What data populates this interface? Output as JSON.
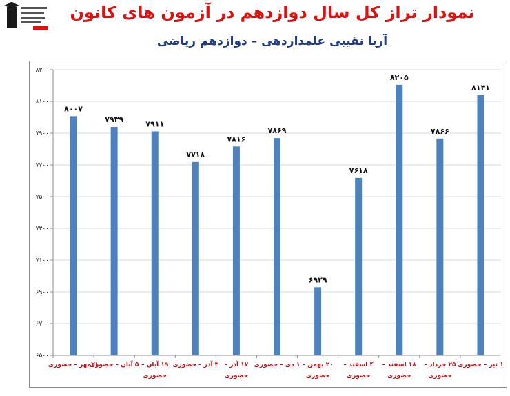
{
  "header": {
    "title": "نمودار تراز کل سال دوازدهم در آزمون های کانون",
    "subtitle": "آریا نقیبی علمداردهی – دوازدهم ریاضی"
  },
  "colors": {
    "bar": "#4f81bd",
    "title": "#e01010",
    "subtitle": "#1f3a8a",
    "xlabel": "#c0141c"
  },
  "chart_data": {
    "type": "bar",
    "title": "نمودار تراز کل سال دوازدهم در آزمون های کانون",
    "subtitle": "آریا نقیبی علمداردهی – دوازدهم ریاضی",
    "categories": [
      [
        "۲۱مهر – حضوری"
      ],
      [
        "۵ آبان – حضوری"
      ],
      [
        "۱۹ آبان –",
        "حضوری"
      ],
      [
        "۳ آذر – حضوری"
      ],
      [
        "۱۷ آذر –",
        "حضوری"
      ],
      [
        "۱ دی – حضوری"
      ],
      [
        "۲۰ بهمن –",
        "حضوری"
      ],
      [
        "۴ اسفند –",
        "حضوری"
      ],
      [
        "۱۸ اسفند –",
        "حضوری"
      ],
      [
        "۲۵ خرداد –",
        "حضوری"
      ],
      [
        "۱ تیر – حضوری"
      ]
    ],
    "values": [
      8007,
      7939,
      7911,
      7718,
      7816,
      7869,
      6929,
      7618,
      8205,
      7866,
      8141
    ],
    "value_labels": [
      "۸۰۰۷",
      "۷۹۳۹",
      "۷۹۱۱",
      "۷۷۱۸",
      "۷۸۱۶",
      "۷۸۶۹",
      "۶۹۲۹",
      "۷۶۱۸",
      "۸۲۰۵",
      "۷۸۶۶",
      "۸۱۴۱"
    ],
    "ylim": [
      6500,
      8300
    ],
    "yticks": [
      6500,
      6700,
      6900,
      7100,
      7300,
      7500,
      7700,
      7900,
      8100,
      8300
    ],
    "ytick_labels": [
      "۶۵۰۰",
      "۶۷۰۰",
      "۶۹۰۰",
      "۷۱۰۰",
      "۷۳۰۰",
      "۷۵۰۰",
      "۷۷۰۰",
      "۷۹۰۰",
      "۸۱۰۰",
      "۸۳۰۰"
    ],
    "grid": true,
    "legend": "none"
  }
}
